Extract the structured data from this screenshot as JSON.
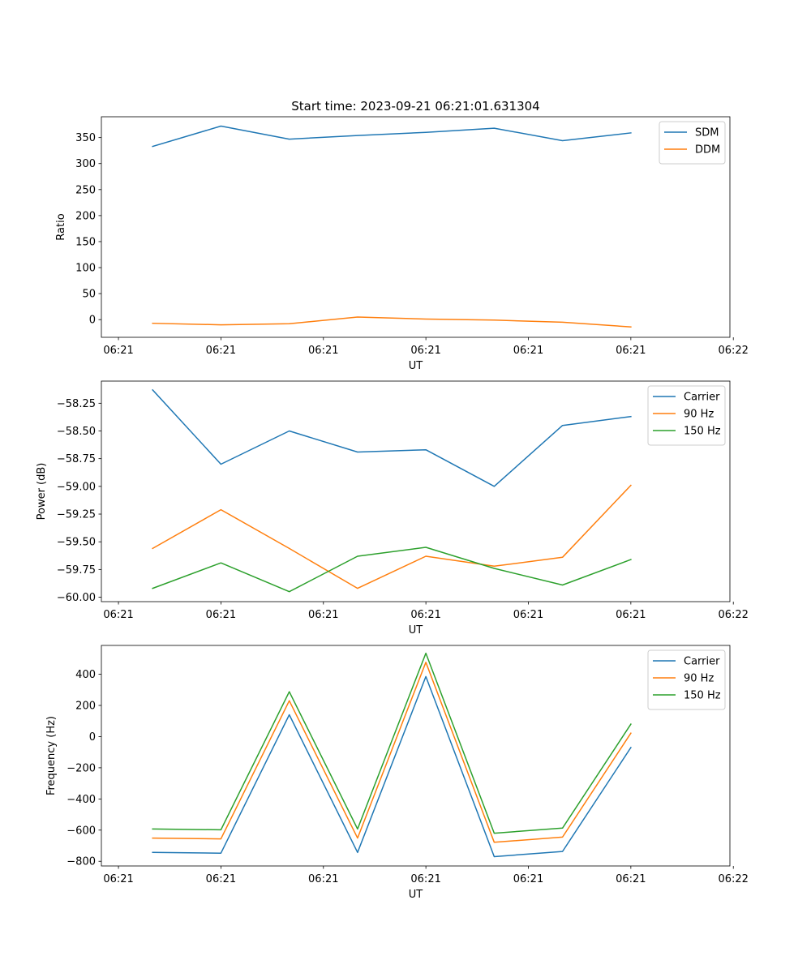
{
  "title": "Start time: 2023-09-21 06:21:01.631304",
  "colors": {
    "blue": "#1f77b4",
    "orange": "#ff7f0e",
    "green": "#2ca02c"
  },
  "chart_data": [
    {
      "type": "line",
      "title": "Start time: 2023-09-21 06:21:01.631304",
      "xlabel": "UT",
      "ylabel": "Ratio",
      "x": [
        1,
        2,
        3,
        4,
        5,
        6,
        7,
        8
      ],
      "xlim": [
        0.25,
        9.45
      ],
      "x_ticks": [
        0.5,
        2,
        3.5,
        5,
        6.5,
        8,
        9.5
      ],
      "x_tick_labels": [
        "06:21",
        "06:21",
        "06:21",
        "06:21",
        "06:21",
        "06:21",
        "06:22"
      ],
      "ylim": [
        -34,
        390
      ],
      "y_ticks": [
        0,
        50,
        100,
        150,
        200,
        250,
        300,
        350
      ],
      "y_tick_labels": [
        "0",
        "50",
        "100",
        "150",
        "200",
        "250",
        "300",
        "350"
      ],
      "legend_position": "top-right",
      "series": [
        {
          "name": "SDM",
          "color": "#1f77b4",
          "values": [
            333,
            372,
            347,
            354,
            360,
            368,
            344,
            359
          ]
        },
        {
          "name": "DDM",
          "color": "#ff7f0e",
          "values": [
            -7,
            -10,
            -8,
            5,
            1,
            -1,
            -5,
            -14
          ]
        }
      ]
    },
    {
      "type": "line",
      "title": "",
      "xlabel": "UT",
      "ylabel": "Power (dB)",
      "x": [
        1,
        2,
        3,
        4,
        5,
        6,
        7,
        8
      ],
      "xlim": [
        0.25,
        9.45
      ],
      "x_ticks": [
        0.5,
        2,
        3.5,
        5,
        6.5,
        8,
        9.5
      ],
      "x_tick_labels": [
        "06:21",
        "06:21",
        "06:21",
        "06:21",
        "06:21",
        "06:21",
        "06:22"
      ],
      "ylim": [
        -60.04,
        -58.05
      ],
      "y_ticks": [
        -60.0,
        -59.75,
        -59.5,
        -59.25,
        -59.0,
        -58.75,
        -58.5,
        -58.25
      ],
      "y_tick_labels": [
        "−60.00",
        "−59.75",
        "−59.50",
        "−59.25",
        "−59.00",
        "−58.75",
        "−58.50",
        "−58.25"
      ],
      "legend_position": "top-right",
      "series": [
        {
          "name": "Carrier",
          "color": "#1f77b4",
          "values": [
            -58.13,
            -58.8,
            -58.5,
            -58.69,
            -58.67,
            -59.0,
            -58.45,
            -58.37
          ]
        },
        {
          "name": "90 Hz",
          "color": "#ff7f0e",
          "values": [
            -59.56,
            -59.21,
            -59.56,
            -59.92,
            -59.63,
            -59.72,
            -59.64,
            -58.99
          ]
        },
        {
          "name": "150 Hz",
          "color": "#2ca02c",
          "values": [
            -59.92,
            -59.69,
            -59.95,
            -59.63,
            -59.55,
            -59.74,
            -59.89,
            -59.66
          ]
        }
      ]
    },
    {
      "type": "line",
      "title": "",
      "xlabel": "UT",
      "ylabel": "Frequency (Hz)",
      "x": [
        1,
        2,
        3,
        4,
        5,
        6,
        7,
        8
      ],
      "xlim": [
        0.25,
        9.45
      ],
      "x_ticks": [
        0.5,
        2,
        3.5,
        5,
        6.5,
        8,
        9.5
      ],
      "x_tick_labels": [
        "06:21",
        "06:21",
        "06:21",
        "06:21",
        "06:21",
        "06:21",
        "06:22"
      ],
      "ylim": [
        -830,
        585
      ],
      "y_ticks": [
        -800,
        -600,
        -400,
        -200,
        0,
        200,
        400
      ],
      "y_tick_labels": [
        "−800",
        "−600",
        "−400",
        "−200",
        "0",
        "200",
        "400"
      ],
      "legend_position": "top-right",
      "series": [
        {
          "name": "Carrier",
          "color": "#1f77b4",
          "values": [
            -743,
            -748,
            140,
            -743,
            385,
            -770,
            -737,
            -70
          ]
        },
        {
          "name": "90 Hz",
          "color": "#ff7f0e",
          "values": [
            -651,
            -656,
            230,
            -651,
            477,
            -678,
            -645,
            22
          ]
        },
        {
          "name": "150 Hz",
          "color": "#2ca02c",
          "values": [
            -593,
            -598,
            288,
            -593,
            535,
            -620,
            -587,
            80
          ]
        }
      ]
    }
  ]
}
